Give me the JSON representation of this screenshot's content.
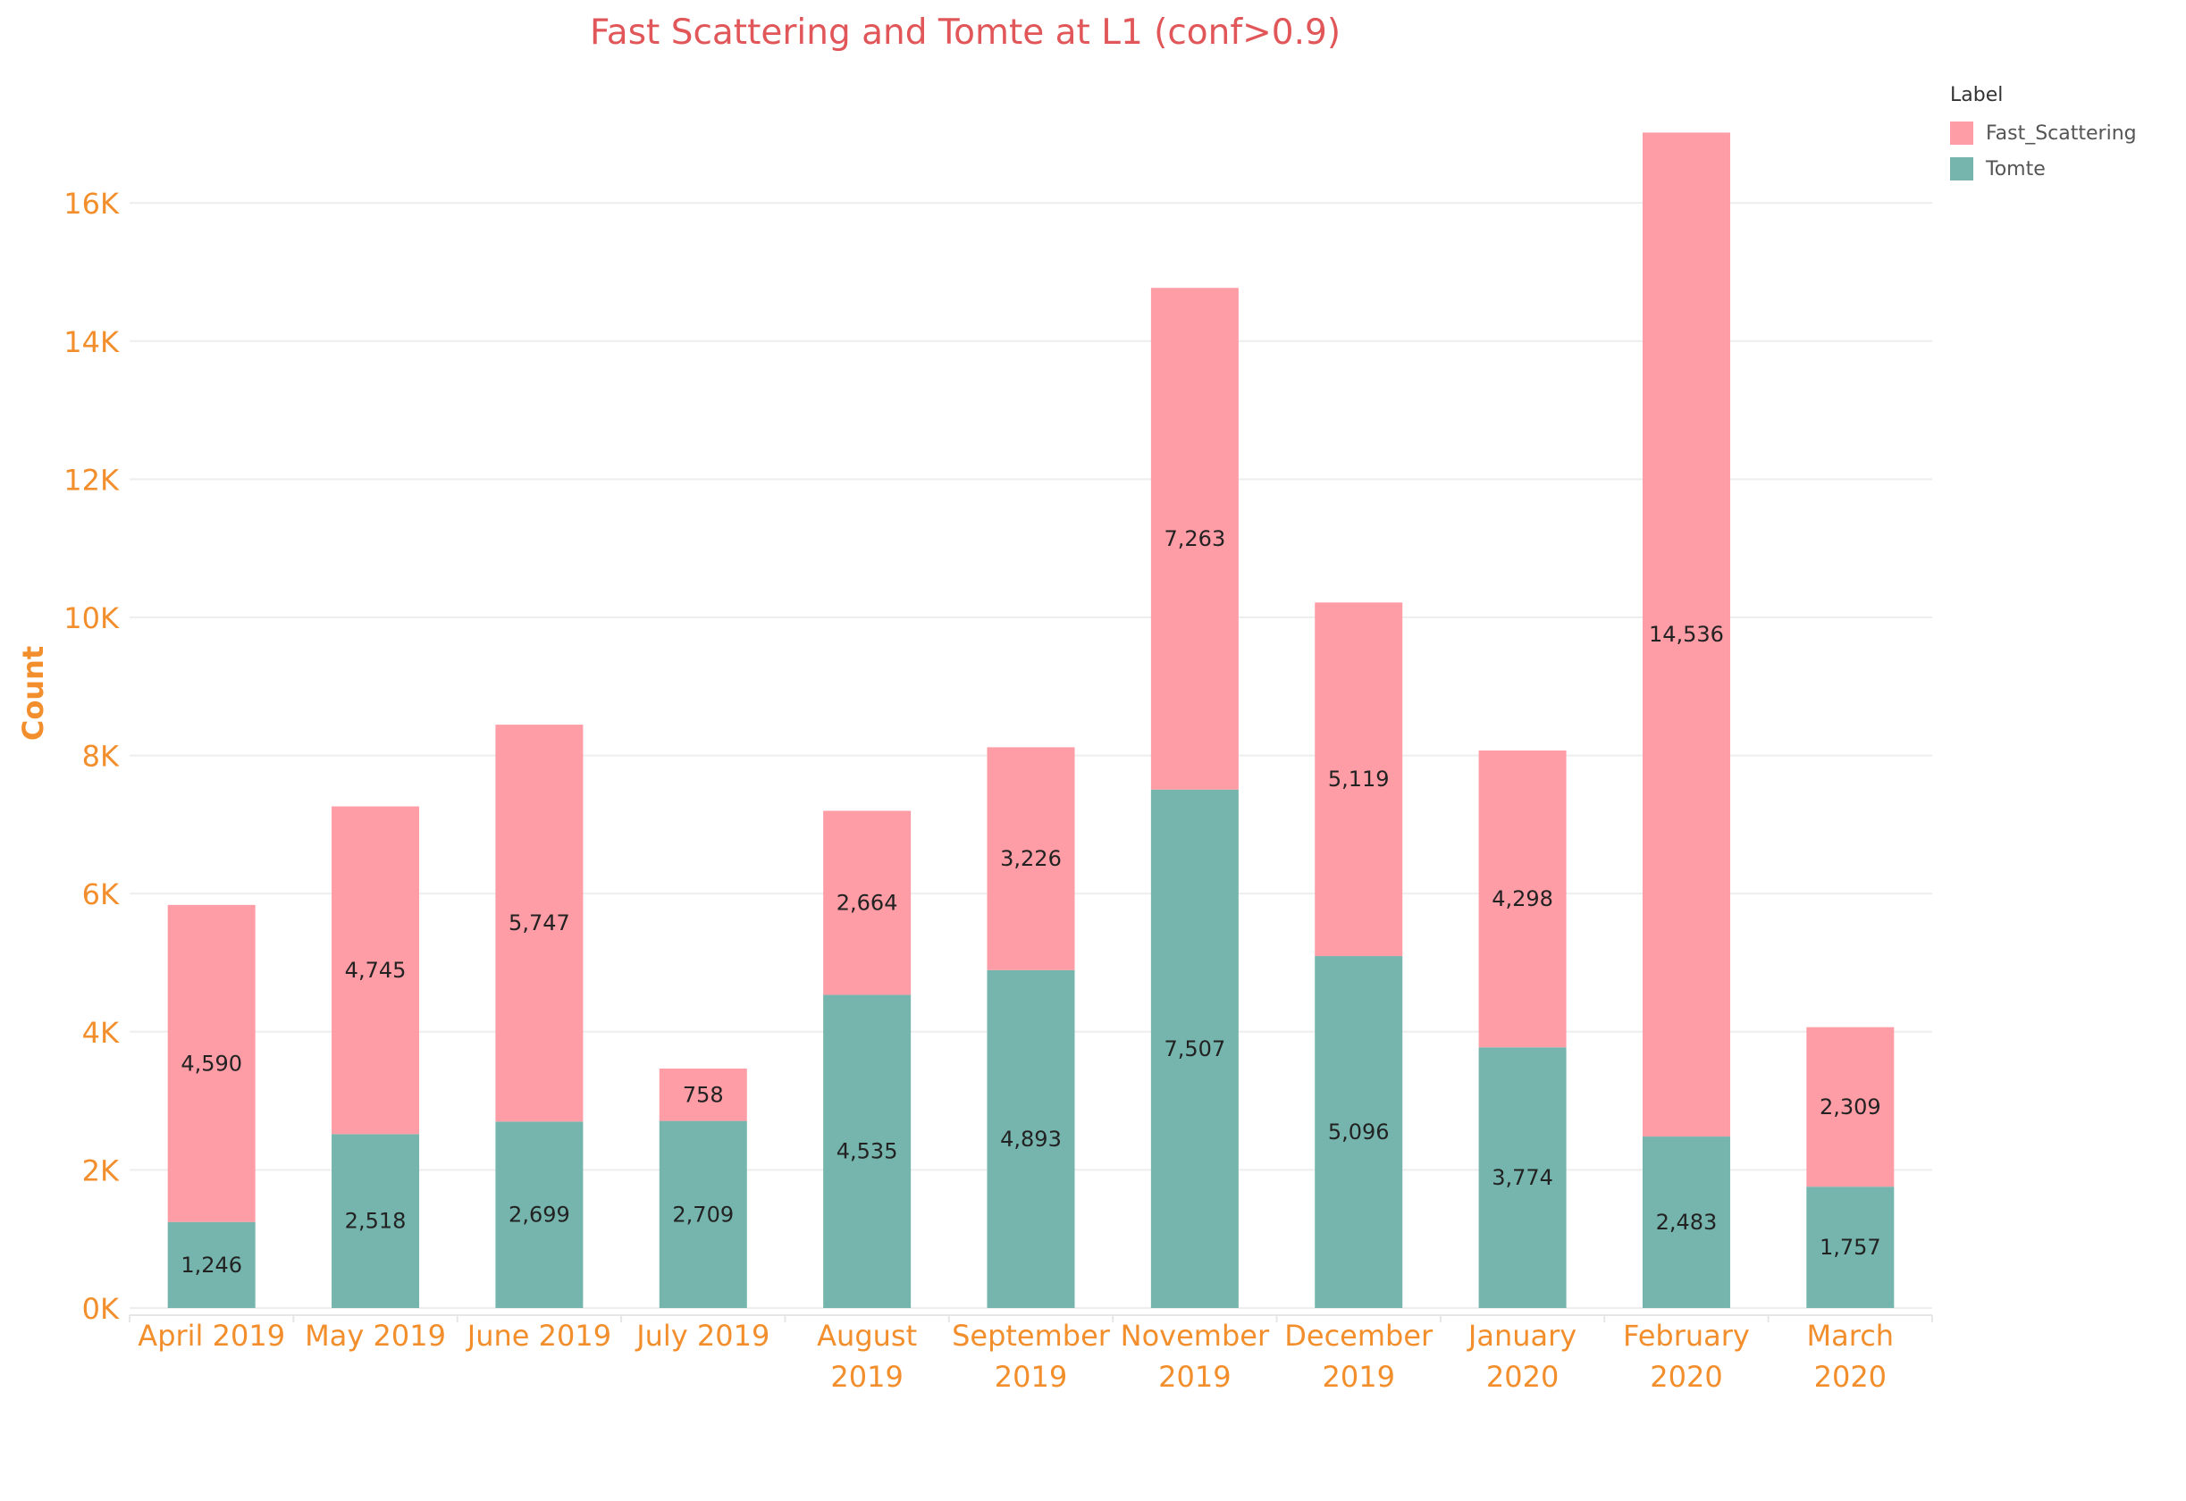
{
  "chart_data": {
    "type": "bar",
    "stacked": true,
    "title": "Fast Scattering and Tomte at L1 (conf>0.9)",
    "xlabel": "",
    "ylabel": "Count",
    "ylim": [
      0,
      17800
    ],
    "yticks": [
      0,
      2000,
      4000,
      6000,
      8000,
      10000,
      12000,
      14000,
      16000
    ],
    "yticklabels": [
      "0K",
      "2K",
      "4K",
      "6K",
      "8K",
      "10K",
      "12K",
      "14K",
      "16K"
    ],
    "grid": true,
    "legend_position": "top-right",
    "legend_title": "Label",
    "categories": [
      [
        "April 2019"
      ],
      [
        "May 2019"
      ],
      [
        "June 2019"
      ],
      [
        "July 2019"
      ],
      [
        "August",
        "2019"
      ],
      [
        "September",
        "2019"
      ],
      [
        "November",
        "2019"
      ],
      [
        "December",
        "2019"
      ],
      [
        "January",
        "2020"
      ],
      [
        "February",
        "2020"
      ],
      [
        "March",
        "2020"
      ]
    ],
    "series": [
      {
        "name": "Tomte",
        "color": "#76b5ae",
        "values": [
          1246,
          2518,
          2699,
          2709,
          4535,
          4893,
          7507,
          5096,
          3774,
          2483,
          1757
        ],
        "labels": [
          "1,246",
          "2,518",
          "2,699",
          "2,709",
          "4,535",
          "4,893",
          "7,507",
          "5,096",
          "3,774",
          "2,483",
          "1,757"
        ]
      },
      {
        "name": "Fast_Scattering",
        "color": "#ff9da6",
        "values": [
          4590,
          4745,
          5747,
          758,
          2664,
          3226,
          7263,
          5119,
          4298,
          14536,
          2309
        ],
        "labels": [
          "4,590",
          "4,745",
          "5,747",
          "758",
          "2,664",
          "3,226",
          "7,263",
          "5,119",
          "4,298",
          "14,536",
          "2,309"
        ]
      }
    ],
    "legend_order": [
      "Fast_Scattering",
      "Tomte"
    ],
    "colors": {
      "axis_text": "#f28e2b",
      "title": "#e15759",
      "grid": "#eeeeee",
      "label": "#222222"
    }
  }
}
